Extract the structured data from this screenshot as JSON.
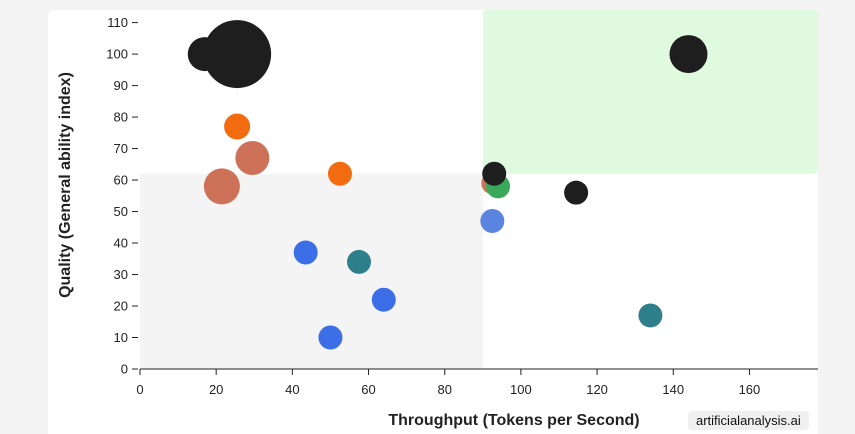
{
  "watermark": "artificialanalysis.ai",
  "chart_data": {
    "type": "scatter",
    "xlabel": "Throughput (Tokens per Second)",
    "ylabel": "Quality (General ability index)",
    "xlim": [
      0,
      178
    ],
    "ylim": [
      0,
      114
    ],
    "xticks": [
      0,
      20,
      40,
      60,
      80,
      100,
      120,
      140,
      160
    ],
    "yticks": [
      0,
      10,
      20,
      30,
      40,
      50,
      60,
      70,
      80,
      90,
      100,
      110
    ],
    "quadrants": {
      "x_split": 90,
      "y_split": 62,
      "low_low_color": "#f4f4f4",
      "high_high_color": "#e0fae0"
    },
    "colors": {
      "black": "#1e1e1e",
      "orange": "#f26b0f",
      "terracotta": "#cd7258",
      "blue": "#3c6ee8",
      "lightblue": "#5b83e0",
      "teal": "#2e7f8c",
      "green": "#3aa95a"
    },
    "points": [
      {
        "x": 17,
        "y": 100,
        "size": 17,
        "color": "black"
      },
      {
        "x": 25.5,
        "y": 100,
        "size": 34,
        "color": "black"
      },
      {
        "x": 144,
        "y": 100,
        "size": 19,
        "color": "black"
      },
      {
        "x": 25.5,
        "y": 77,
        "size": 13,
        "color": "orange"
      },
      {
        "x": 29.5,
        "y": 67,
        "size": 17,
        "color": "terracotta"
      },
      {
        "x": 21.5,
        "y": 58,
        "size": 18,
        "color": "terracotta"
      },
      {
        "x": 52.5,
        "y": 62,
        "size": 12,
        "color": "orange"
      },
      {
        "x": 92.5,
        "y": 59,
        "size": 11,
        "color": "terracotta"
      },
      {
        "x": 94,
        "y": 58,
        "size": 12,
        "color": "green"
      },
      {
        "x": 93,
        "y": 62,
        "size": 12,
        "color": "black"
      },
      {
        "x": 114.5,
        "y": 56,
        "size": 12,
        "color": "black"
      },
      {
        "x": 92.5,
        "y": 47,
        "size": 12,
        "color": "lightblue"
      },
      {
        "x": 43.5,
        "y": 37,
        "size": 12,
        "color": "blue"
      },
      {
        "x": 57.5,
        "y": 34,
        "size": 12,
        "color": "teal"
      },
      {
        "x": 64,
        "y": 22,
        "size": 12,
        "color": "blue"
      },
      {
        "x": 50,
        "y": 10,
        "size": 12,
        "color": "blue"
      },
      {
        "x": 134,
        "y": 17,
        "size": 12,
        "color": "teal"
      }
    ]
  }
}
